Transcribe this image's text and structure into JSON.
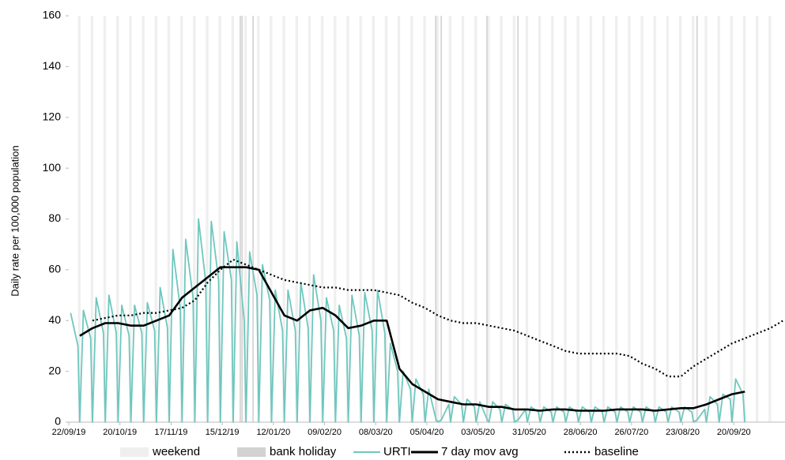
{
  "chart_data": {
    "type": "line",
    "y_label": "Daily rate per 100,000 population",
    "ylim": [
      0,
      160
    ],
    "yticks": [
      0,
      20,
      40,
      60,
      80,
      100,
      120,
      140,
      160
    ],
    "xlim": [
      "22/09/19",
      "18/10/20"
    ],
    "xticks": [
      "22/09/19",
      "20/10/19",
      "17/11/19",
      "15/12/19",
      "12/01/20",
      "09/02/20",
      "08/03/20",
      "05/04/20",
      "03/05/20",
      "31/05/20",
      "28/06/20",
      "26/07/20",
      "23/08/20",
      "20/09/20"
    ],
    "legend": "bottom",
    "series": [
      {
        "name": "weekend",
        "kind": "bar",
        "color": "#efefef",
        "x": [
          "28/09/19",
          "05/10/19",
          "12/10/19",
          "19/10/19",
          "26/10/19",
          "02/11/19",
          "09/11/19",
          "16/11/19",
          "23/11/19",
          "30/11/19",
          "07/12/19",
          "14/12/19",
          "21/12/19",
          "28/12/19",
          "04/01/20",
          "11/01/20",
          "18/01/20",
          "25/01/20",
          "01/02/20",
          "08/02/20",
          "15/02/20",
          "22/02/20",
          "29/02/20",
          "07/03/20",
          "14/03/20",
          "21/03/20",
          "28/03/20",
          "04/04/20",
          "11/04/20",
          "18/04/20",
          "25/04/20",
          "02/05/20",
          "09/05/20",
          "16/05/20",
          "23/05/20",
          "30/05/20",
          "06/06/20",
          "13/06/20",
          "20/06/20",
          "27/06/20",
          "04/07/20",
          "11/07/20",
          "18/07/20",
          "25/07/20",
          "01/08/20",
          "08/08/20",
          "15/08/20",
          "22/08/20",
          "29/08/20",
          "05/09/20",
          "12/09/20",
          "19/09/20",
          "26/09/20",
          "03/10/20",
          "10/10/20"
        ],
        "values": [
          160,
          160,
          160,
          160,
          160,
          160,
          160,
          160,
          160,
          160,
          160,
          160,
          160,
          160,
          160,
          160,
          160,
          160,
          160,
          160,
          160,
          160,
          160,
          160,
          160,
          160,
          160,
          160,
          160,
          160,
          160,
          160,
          160,
          160,
          160,
          160,
          160,
          160,
          160,
          160,
          160,
          160,
          160,
          160,
          160,
          160,
          160,
          160,
          160,
          160,
          160,
          160,
          160,
          160,
          160
        ]
      },
      {
        "name": "bank holiday",
        "kind": "bar",
        "color": "#d2d2d2",
        "x": [
          "25/12/19",
          "26/12/19",
          "01/01/20",
          "10/04/20",
          "13/04/20",
          "08/05/20",
          "25/05/20",
          "31/08/20"
        ],
        "values": [
          160,
          160,
          160,
          160,
          160,
          160,
          160,
          160
        ]
      },
      {
        "name": "URTI",
        "kind": "line",
        "color": "#6fc7be",
        "x": [
          "23/09/19",
          "27/09/19",
          "28/09/19",
          "30/09/19",
          "04/10/19",
          "05/10/19",
          "07/10/19",
          "11/10/19",
          "12/10/19",
          "14/10/19",
          "18/10/19",
          "19/10/19",
          "21/10/19",
          "25/10/19",
          "26/10/19",
          "28/10/19",
          "01/11/19",
          "02/11/19",
          "04/11/19",
          "08/11/19",
          "09/11/19",
          "11/11/19",
          "15/11/19",
          "16/11/19",
          "18/11/19",
          "22/11/19",
          "23/11/19",
          "25/11/19",
          "29/11/19",
          "30/11/19",
          "02/12/19",
          "06/12/19",
          "07/12/19",
          "09/12/19",
          "13/12/19",
          "14/12/19",
          "16/12/19",
          "20/12/19",
          "21/12/19",
          "23/12/19",
          "27/12/19",
          "28/12/19",
          "30/12/19",
          "03/01/20",
          "04/01/20",
          "06/01/20",
          "10/01/20",
          "11/01/20",
          "13/01/20",
          "17/01/20",
          "18/01/20",
          "20/01/20",
          "24/01/20",
          "25/01/20",
          "27/01/20",
          "31/01/20",
          "01/02/20",
          "03/02/20",
          "07/02/20",
          "08/02/20",
          "10/02/20",
          "14/02/20",
          "15/02/20",
          "17/02/20",
          "21/02/20",
          "22/02/20",
          "24/02/20",
          "28/02/20",
          "29/02/20",
          "02/03/20",
          "06/03/20",
          "07/03/20",
          "09/03/20",
          "13/03/20",
          "14/03/20",
          "16/03/20",
          "20/03/20",
          "21/03/20",
          "23/03/20",
          "27/03/20",
          "28/03/20",
          "30/03/20",
          "03/04/20",
          "04/04/20",
          "06/04/20",
          "10/04/20",
          "11/04/20",
          "13/04/20",
          "17/04/20",
          "18/04/20",
          "20/04/20",
          "24/04/20",
          "25/04/20",
          "27/04/20",
          "01/05/20",
          "02/05/20",
          "04/05/20",
          "08/05/20",
          "09/05/20",
          "11/05/20",
          "15/05/20",
          "16/05/20",
          "18/05/20",
          "22/05/20",
          "23/05/20",
          "25/05/20",
          "29/05/20",
          "30/05/20",
          "01/06/20",
          "05/06/20",
          "06/06/20",
          "08/06/20",
          "12/06/20",
          "13/06/20",
          "15/06/20",
          "19/06/20",
          "20/06/20",
          "22/06/20",
          "26/06/20",
          "27/06/20",
          "29/06/20",
          "03/07/20",
          "04/07/20",
          "06/07/20",
          "10/07/20",
          "11/07/20",
          "13/07/20",
          "17/07/20",
          "18/07/20",
          "20/07/20",
          "24/07/20",
          "25/07/20",
          "27/07/20",
          "31/07/20",
          "01/08/20",
          "03/08/20",
          "07/08/20",
          "08/08/20",
          "10/08/20",
          "14/08/20",
          "15/08/20",
          "17/08/20",
          "21/08/20",
          "22/08/20",
          "24/08/20",
          "28/08/20",
          "29/08/20",
          "31/08/20",
          "04/09/20",
          "05/09/20",
          "07/09/20",
          "11/09/20",
          "12/09/20",
          "14/09/20",
          "18/09/20",
          "19/09/20",
          "21/09/20",
          "25/09/20",
          "26/09/20"
        ],
        "values": [
          43,
          30,
          0,
          44,
          33,
          0,
          49,
          35,
          0,
          50,
          35,
          0,
          46,
          34,
          0,
          46,
          35,
          0,
          47,
          36,
          0,
          53,
          37,
          0,
          68,
          45,
          0,
          72,
          49,
          0,
          80,
          55,
          0,
          79,
          56,
          0,
          75,
          56,
          0,
          71,
          40,
          0,
          67,
          50,
          0,
          62,
          48,
          0,
          52,
          36,
          0,
          52,
          36,
          0,
          55,
          37,
          0,
          58,
          40,
          0,
          49,
          36,
          0,
          46,
          33,
          0,
          50,
          34,
          0,
          51,
          36,
          0,
          52,
          35,
          0,
          31,
          20,
          0,
          20,
          13,
          0,
          17,
          11,
          0,
          13,
          1,
          0,
          1,
          7,
          0,
          10,
          7,
          0,
          9,
          6,
          0,
          8,
          1,
          0,
          8,
          5,
          0,
          7,
          5,
          0,
          1,
          5,
          0,
          6,
          4,
          0,
          6,
          4,
          0,
          6,
          4,
          0,
          6,
          4,
          0,
          6,
          4,
          0,
          6,
          4,
          0,
          6,
          4,
          0,
          6,
          4,
          0,
          6,
          4,
          0,
          6,
          4,
          0,
          6,
          4,
          0,
          6,
          4,
          0,
          6,
          4,
          0,
          1,
          5,
          0,
          10,
          7,
          0,
          11,
          9,
          0,
          17,
          11,
          0
        ]
      },
      {
        "name": "7 day mov avg",
        "kind": "line",
        "color": "#000000",
        "x": [
          "28/09/19",
          "05/10/19",
          "12/10/19",
          "19/10/19",
          "26/10/19",
          "02/11/19",
          "09/11/19",
          "16/11/19",
          "23/11/19",
          "30/11/19",
          "07/12/19",
          "14/12/19",
          "21/12/19",
          "28/12/19",
          "04/01/20",
          "11/01/20",
          "18/01/20",
          "25/01/20",
          "01/02/20",
          "08/02/20",
          "15/02/20",
          "22/02/20",
          "29/02/20",
          "07/03/20",
          "14/03/20",
          "21/03/20",
          "28/03/20",
          "04/04/20",
          "11/04/20",
          "18/04/20",
          "25/04/20",
          "02/05/20",
          "09/05/20",
          "16/05/20",
          "23/05/20",
          "30/05/20",
          "06/06/20",
          "13/06/20",
          "20/06/20",
          "27/06/20",
          "04/07/20",
          "11/07/20",
          "18/07/20",
          "25/07/20",
          "01/08/20",
          "08/08/20",
          "15/08/20",
          "22/08/20",
          "29/08/20",
          "05/09/20",
          "12/09/20",
          "19/09/20",
          "26/09/20"
        ],
        "values": [
          34,
          37,
          39,
          39,
          38,
          38,
          40,
          42,
          49,
          53,
          57,
          61,
          61,
          61,
          60,
          51,
          42,
          40,
          44,
          45,
          42,
          37,
          38,
          40,
          40,
          21,
          15,
          12,
          9,
          8,
          7,
          7,
          6,
          6,
          5,
          5,
          4.5,
          5,
          5,
          4.5,
          4.5,
          4.5,
          5,
          5,
          5,
          4.5,
          5,
          5.5,
          5.5,
          7,
          9,
          11,
          12
        ]
      },
      {
        "name": "baseline",
        "kind": "line",
        "dash": "dotted",
        "color": "#000000",
        "x": [
          "05/10/19",
          "12/10/19",
          "19/10/19",
          "26/10/19",
          "02/11/19",
          "09/11/19",
          "16/11/19",
          "23/11/19",
          "30/11/19",
          "07/12/19",
          "14/12/19",
          "21/12/19",
          "28/12/19",
          "04/01/20",
          "11/01/20",
          "18/01/20",
          "25/01/20",
          "01/02/20",
          "08/02/20",
          "15/02/20",
          "22/02/20",
          "29/02/20",
          "07/03/20",
          "14/03/20",
          "21/03/20",
          "28/03/20",
          "04/04/20",
          "11/04/20",
          "18/04/20",
          "25/04/20",
          "02/05/20",
          "09/05/20",
          "16/05/20",
          "23/05/20",
          "30/05/20",
          "06/06/20",
          "13/06/20",
          "20/06/20",
          "27/06/20",
          "04/07/20",
          "11/07/20",
          "18/07/20",
          "25/07/20",
          "01/08/20",
          "08/08/20",
          "15/08/20",
          "22/08/20",
          "29/08/20",
          "05/09/20",
          "12/09/20",
          "19/09/20",
          "26/09/20",
          "03/10/20",
          "10/10/20",
          "17/10/20"
        ],
        "values": [
          40,
          41,
          42,
          42,
          43,
          43,
          44,
          45,
          48,
          55,
          60,
          64,
          62,
          60,
          58,
          56,
          55,
          54,
          53,
          53,
          52,
          52,
          52,
          51,
          50,
          47,
          45,
          42,
          40,
          39,
          39,
          38,
          37,
          36,
          34,
          32,
          30,
          28,
          27,
          27,
          27,
          27,
          26,
          23,
          21,
          18,
          18,
          22,
          25,
          28,
          31,
          33,
          35,
          37,
          40
        ]
      }
    ]
  }
}
